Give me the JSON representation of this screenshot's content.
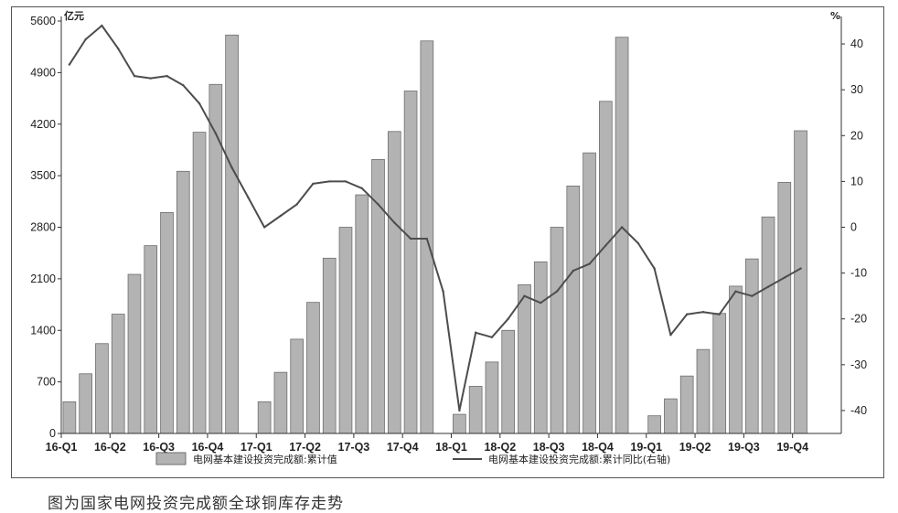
{
  "chart_data": {
    "type": "bar+line",
    "caption": "图为国家电网投资完成额全球铜库存走势",
    "left_unit": "亿元",
    "right_unit": "%",
    "left_axis": {
      "min": 0,
      "max": 5600,
      "ticks": [
        "0",
        "700",
        "1400",
        "2100",
        "2800",
        "3500",
        "4200",
        "4900",
        "5600"
      ]
    },
    "right_axis": {
      "min": -45,
      "max": 45,
      "ticks": [
        "-40",
        "-30",
        "-20",
        "-10",
        "0",
        "10",
        "20",
        "30",
        "40"
      ]
    },
    "x_labels": [
      "16-Q1",
      "16-Q2",
      "16-Q3",
      "16-Q4",
      "17-Q1",
      "17-Q2",
      "17-Q3",
      "17-Q4",
      "18-Q1",
      "18-Q2",
      "18-Q3",
      "18-Q4",
      "19-Q1",
      "19-Q2",
      "19-Q3",
      "19-Q4"
    ],
    "months_per_year": 12,
    "years": 4,
    "bar_series": {
      "name": "电网基本建设投资完成额:累计值",
      "color": "#b3b3b3",
      "values": [
        430,
        810,
        1220,
        1620,
        2160,
        2550,
        3000,
        3560,
        4090,
        4740,
        5410,
        null,
        430,
        830,
        1280,
        1780,
        2380,
        2800,
        3240,
        3720,
        4100,
        4650,
        5330,
        null,
        260,
        640,
        970,
        1400,
        2020,
        2330,
        2800,
        3360,
        3810,
        4510,
        5380,
        null,
        240,
        470,
        780,
        1140,
        1630,
        2000,
        2370,
        2940,
        3410,
        4110,
        null,
        null
      ]
    },
    "line_series": {
      "name": "电网基本建设投资完成额:累计同比(右轴)",
      "color": "#4d4d4d",
      "values": [
        35.5,
        41,
        44,
        39,
        33,
        32.5,
        33,
        31,
        27,
        20.5,
        13,
        6.5,
        0,
        2.5,
        5,
        9.5,
        10,
        10,
        8.5,
        5,
        1,
        -2.5,
        -2.5,
        -14,
        -40,
        -23,
        -24,
        -20,
        -15,
        -16.5,
        -14,
        -9.5,
        -8,
        -4,
        0,
        -3.5,
        -9,
        -23.5,
        -19,
        -18.5,
        -19,
        -14,
        -15,
        -13,
        -11,
        -9
      ]
    }
  }
}
